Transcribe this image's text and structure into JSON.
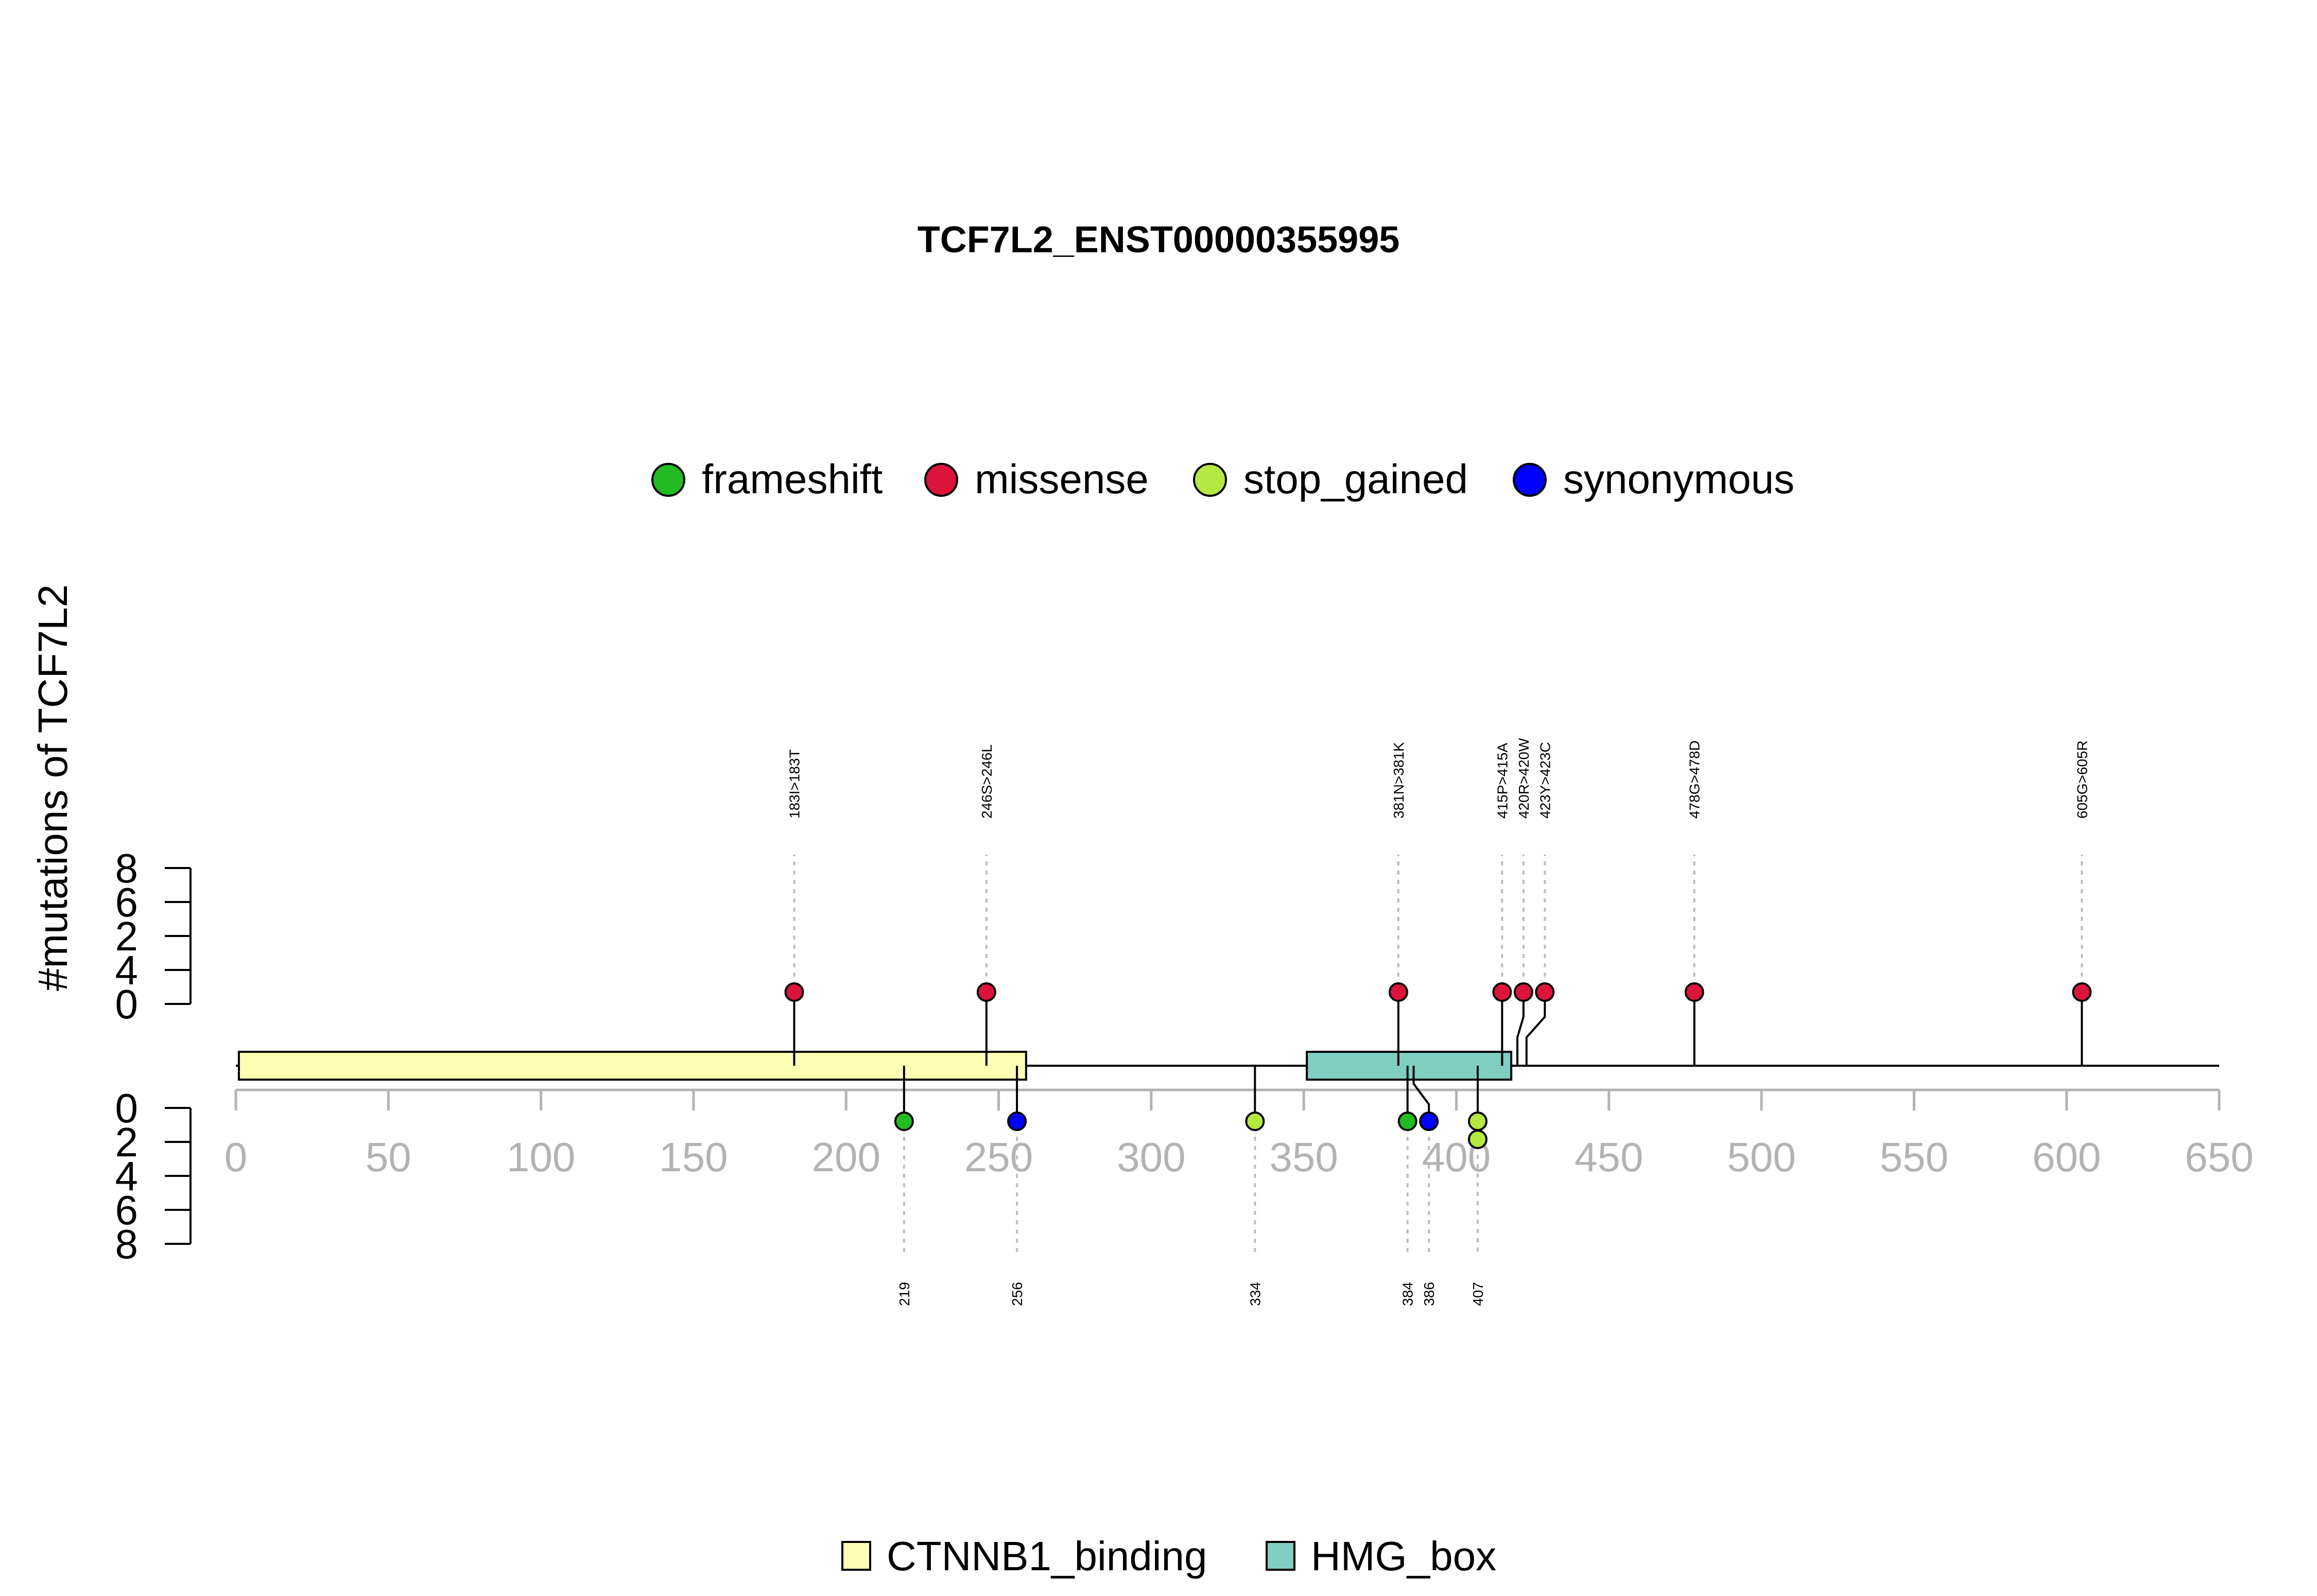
{
  "chart_data": {
    "type": "lollipop",
    "title": "TCF7L2_ENST00000355995",
    "ylabel": "#mutations of TCF7L2",
    "protein_length": 650,
    "xlim": [
      0,
      650
    ],
    "xticks": [
      0,
      50,
      100,
      150,
      200,
      250,
      300,
      350,
      400,
      450,
      500,
      550,
      600,
      650
    ],
    "upper_yticks": [
      "8",
      "6",
      "2",
      "4",
      "0"
    ],
    "lower_yticks": [
      "0",
      "2",
      "4",
      "6",
      "8"
    ],
    "mutation_types": [
      {
        "name": "frameshift",
        "color": "#22bb22"
      },
      {
        "name": "missense",
        "color": "#dc143c"
      },
      {
        "name": "stop_gained",
        "color": "#b5e840"
      },
      {
        "name": "synonymous",
        "color": "#0000ff"
      }
    ],
    "domains": [
      {
        "name": "CTNNB1_binding",
        "start": 1,
        "end": 259,
        "color": "#ffffb3"
      },
      {
        "name": "HMG_box",
        "start": 351,
        "end": 418,
        "color": "#80cdc1"
      }
    ],
    "upper_mutations": [
      {
        "label": "183I>183T",
        "pos": 183,
        "count": 1,
        "type": "missense"
      },
      {
        "label": "246S>246L",
        "pos": 246,
        "count": 1,
        "type": "missense"
      },
      {
        "label": "381N>381K",
        "pos": 381,
        "count": 1,
        "type": "missense"
      },
      {
        "label": "415P>415A",
        "pos": 415,
        "count": 1,
        "type": "missense"
      },
      {
        "label": "420R>420W",
        "pos": 420,
        "count": 1,
        "type": "missense"
      },
      {
        "label": "423Y>423C",
        "pos": 423,
        "count": 1,
        "type": "missense"
      },
      {
        "label": "478G>478D",
        "pos": 478,
        "count": 1,
        "type": "missense"
      },
      {
        "label": "605G>605R",
        "pos": 605,
        "count": 1,
        "type": "missense"
      }
    ],
    "lower_mutations": [
      {
        "label": "219",
        "pos": 219,
        "count": 1,
        "type": "frameshift"
      },
      {
        "label": "256",
        "pos": 256,
        "count": 1,
        "type": "synonymous"
      },
      {
        "label": "334",
        "pos": 334,
        "count": 1,
        "type": "stop_gained"
      },
      {
        "label": "384",
        "pos": 384,
        "count": 1,
        "type": "frameshift"
      },
      {
        "label": "386",
        "pos": 386,
        "count": 1,
        "type": "synonymous"
      },
      {
        "label": "407",
        "pos": 407,
        "count": 2,
        "type": "stop_gained"
      }
    ]
  }
}
